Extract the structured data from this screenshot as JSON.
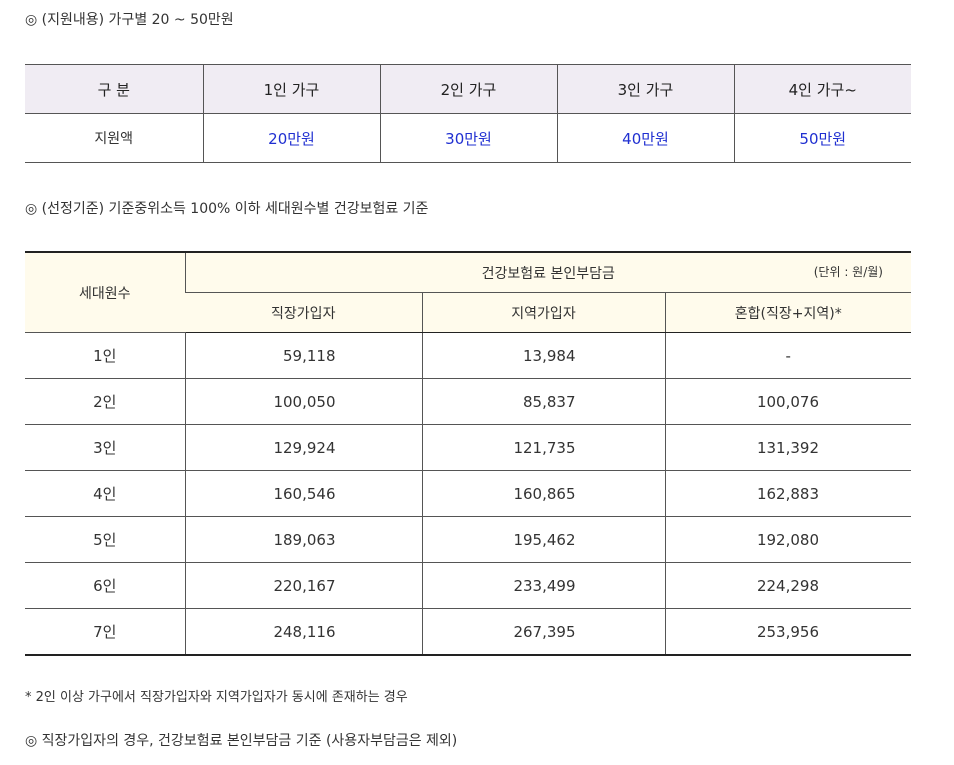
{
  "heading1": "◎ (지원내용) 가구별 20 ~ 50만원",
  "table1": {
    "header": [
      "구 분",
      "1인 가구",
      "2인 가구",
      "3인 가구",
      "4인 가구~"
    ],
    "row": [
      "지원액",
      "20만원",
      "30만원",
      "40만원",
      "50만원"
    ]
  },
  "heading2": "◎ (선정기준) 기준중위소득 100% 이하 세대원수별 건강보험료 기준",
  "table2": {
    "row_header": "세대원수",
    "group_header": "건강보험료 본인부담금",
    "unit": "(단위 : 원/월)",
    "columns": [
      "직장가입자",
      "지역가입자",
      "혼합(직장+지역)*"
    ],
    "rows": [
      [
        "1인",
        "59,118",
        "13,984",
        "-"
      ],
      [
        "2인",
        "100,050",
        "85,837",
        "100,076"
      ],
      [
        "3인",
        "129,924",
        "121,735",
        "131,392"
      ],
      [
        "4인",
        "160,546",
        "160,865",
        "162,883"
      ],
      [
        "5인",
        "189,063",
        "195,462",
        "192,080"
      ],
      [
        "6인",
        "220,167",
        "233,499",
        "224,298"
      ],
      [
        "7인",
        "248,116",
        "267,395",
        "253,956"
      ]
    ]
  },
  "footnote": "* 2인 이상 가구에서 직장가입자와 지역가입자가 동시에 존재하는 경우",
  "heading3": "◎ 직장가입자의 경우, 건강보험료 본인부담금 기준 (사용자부담금은 제외)"
}
